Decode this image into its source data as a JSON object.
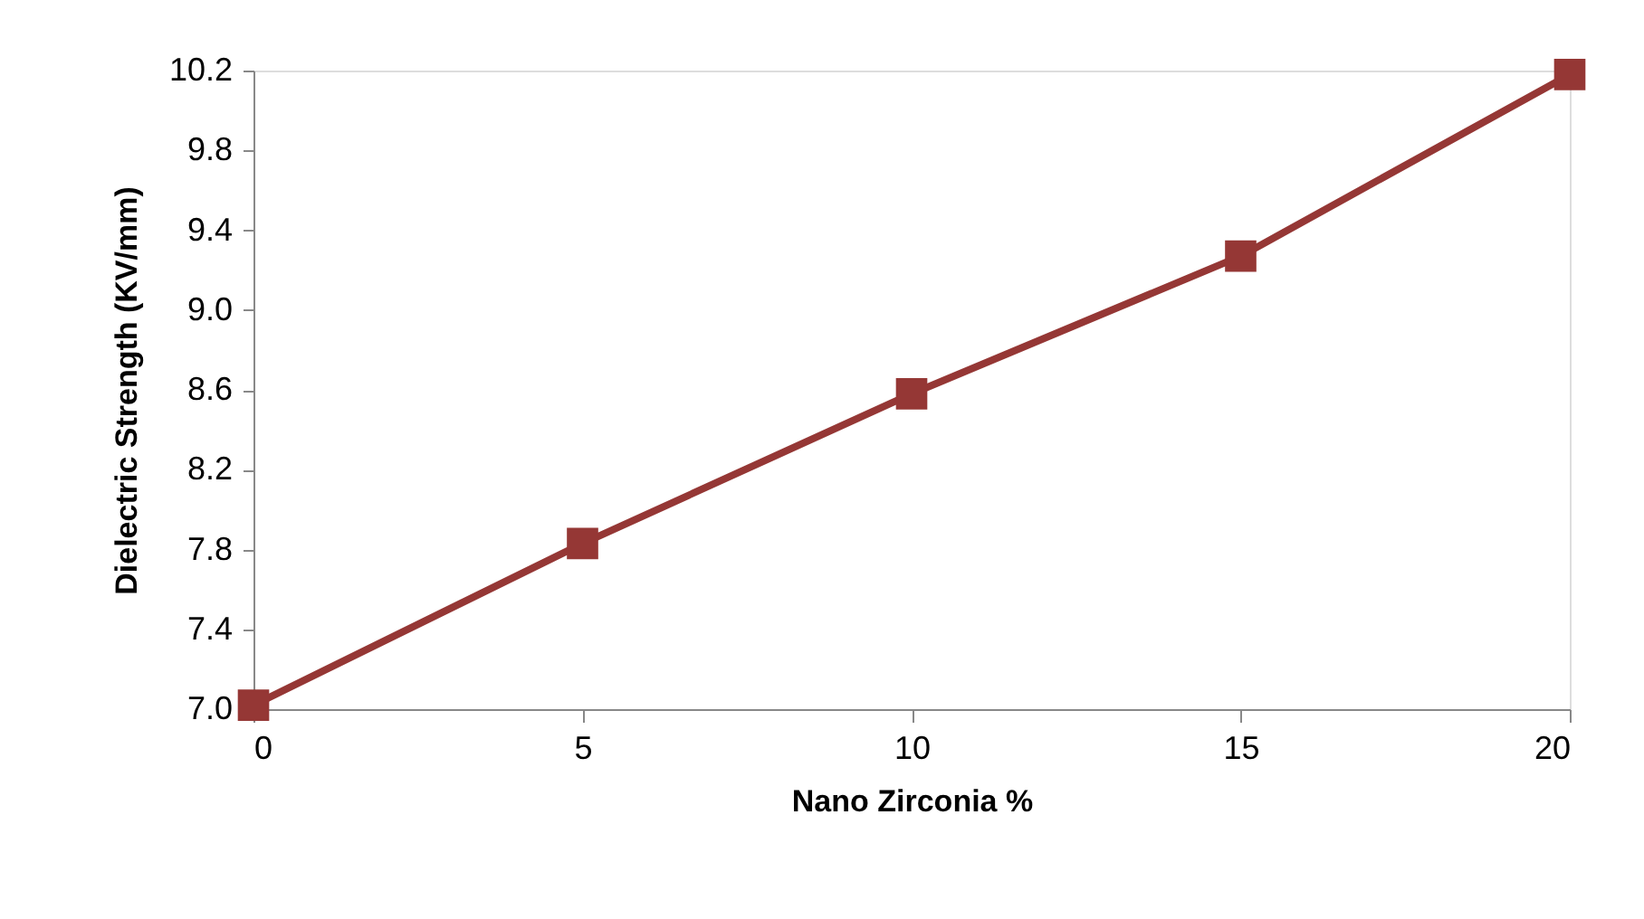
{
  "chart_data": {
    "type": "line",
    "xlabel": "Nano Zirconia %",
    "ylabel": "Dielectric Strength (KV/mm)",
    "x": [
      0,
      5,
      10,
      15,
      20
    ],
    "series": [
      {
        "color": "#953735",
        "values": [
          7.02,
          7.83,
          8.58,
          9.27,
          10.18
        ]
      }
    ],
    "xlim": [
      0,
      20
    ],
    "xticks": [
      0,
      5,
      10,
      15,
      20
    ],
    "ylim": [
      7.0,
      10.2
    ],
    "yticks": [
      {
        "value": 7.0,
        "label": "7.0"
      },
      {
        "value": 7.4,
        "label": "7.4"
      },
      {
        "value": 7.8,
        "label": "7.8"
      },
      {
        "value": 8.2,
        "label": "8.2"
      },
      {
        "value": 8.6,
        "label": "8.6"
      },
      {
        "value": 9.0,
        "label": "9.0"
      },
      {
        "value": 9.4,
        "label": "9.4"
      },
      {
        "value": 9.8,
        "label": "9.8"
      },
      {
        "value": 10.2,
        "label": "10.2"
      }
    ],
    "grid": false,
    "marker": "square",
    "line_style": "solid"
  }
}
